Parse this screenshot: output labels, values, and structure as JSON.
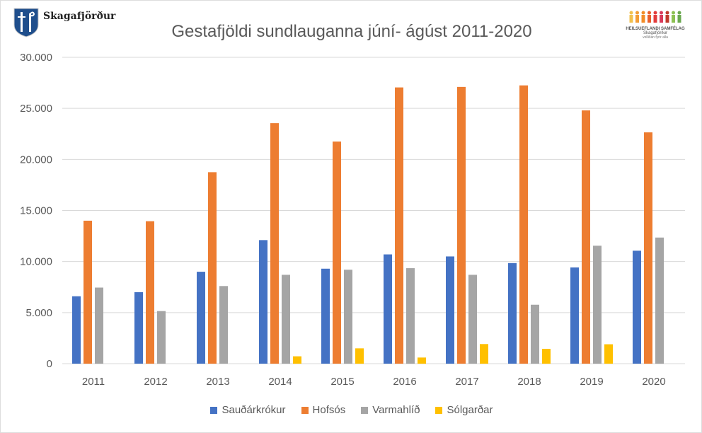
{
  "logos": {
    "left_text": "Skagafjörður",
    "right_lines": [
      "HEILSUEFLANDI SAMFÉLAG",
      "Skagafjörður",
      "velliðan fyrir alla"
    ]
  },
  "chart_data": {
    "type": "bar",
    "title": "Gestafjöldi sundlauganna júní- ágúst 2011-2020",
    "xlabel": "",
    "ylabel": "",
    "categories": [
      "2011",
      "2012",
      "2013",
      "2014",
      "2015",
      "2016",
      "2017",
      "2018",
      "2019",
      "2020"
    ],
    "ylim": [
      0,
      30000
    ],
    "yticks": [
      0,
      5000,
      10000,
      15000,
      20000,
      25000,
      30000
    ],
    "ytick_labels": [
      "0",
      "5.000",
      "10.000",
      "15.000",
      "20.000",
      "25.000",
      "30.000"
    ],
    "grid": true,
    "legend_position": "bottom",
    "series": [
      {
        "name": "Sauðárkrókur",
        "color": "#4472C4",
        "values": [
          6600,
          7000,
          9000,
          12100,
          9300,
          10700,
          10500,
          9850,
          9420,
          11060
        ]
      },
      {
        "name": "Hofsós",
        "color": "#ED7D31",
        "values": [
          14000,
          13950,
          18750,
          23550,
          21750,
          27050,
          27100,
          27250,
          24800,
          22650
        ]
      },
      {
        "name": "Varmahlíð",
        "color": "#A5A5A5",
        "values": [
          7450,
          5150,
          7600,
          8700,
          9200,
          9350,
          8700,
          5770,
          11550,
          12350
        ]
      },
      {
        "name": "Sólgarðar",
        "color": "#FFC000",
        "values": [
          0,
          0,
          0,
          720,
          1500,
          600,
          1920,
          1450,
          1900,
          0
        ]
      }
    ]
  }
}
